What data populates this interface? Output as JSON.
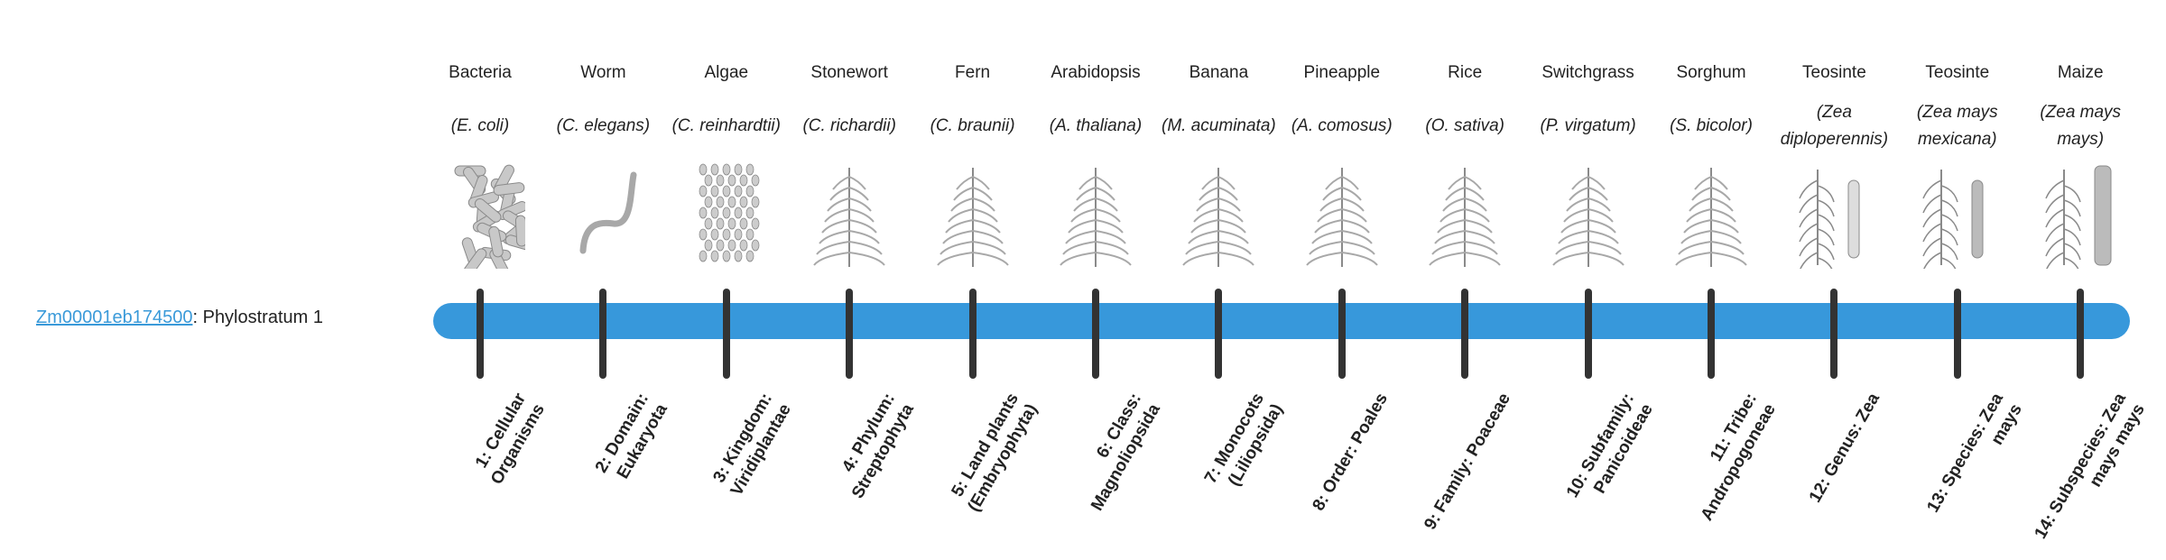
{
  "gene": {
    "id": "Zm00001eb174500",
    "suffix": ": Phylostratum 1"
  },
  "colors": {
    "bar": "#3798db",
    "tick": "#333333",
    "link": "#3a9ad9"
  },
  "columns": [
    {
      "common": "Bacteria",
      "scientific": "(E. coli)",
      "icon": "bacteria-icon",
      "stratum": "1: Cellular Organisms"
    },
    {
      "common": "Worm",
      "scientific": "(C. elegans)",
      "icon": "worm-icon",
      "stratum": "2: Domain: Eukaryota"
    },
    {
      "common": "Algae",
      "scientific": "(C. reinhardtii)",
      "icon": "algae-icon",
      "stratum": "3: Kingdom: Viridiplantae"
    },
    {
      "common": "Stonewort",
      "scientific": "(C. richardii)",
      "icon": "stonewort-icon",
      "stratum": "4: Phylum: Streptophyta"
    },
    {
      "common": "Fern",
      "scientific": "(C. braunii)",
      "icon": "fern-icon",
      "stratum": "5: Land plants (Embryophyta)"
    },
    {
      "common": "Arabidopsis",
      "scientific": "(A. thaliana)",
      "icon": "arabidopsis-icon",
      "stratum": "6: Class: Magnoliopsida"
    },
    {
      "common": "Banana",
      "scientific": "(M. acuminata)",
      "icon": "banana-icon",
      "stratum": "7: Monocots (Liliopsida)"
    },
    {
      "common": "Pineapple",
      "scientific": "(A. comosus)",
      "icon": "pineapple-icon",
      "stratum": "8: Order: Poales"
    },
    {
      "common": "Rice",
      "scientific": "(O. sativa)",
      "icon": "rice-icon",
      "stratum": "9: Family: Poaceae"
    },
    {
      "common": "Switchgrass",
      "scientific": "(P. virgatum)",
      "icon": "switchgrass-icon",
      "stratum": "10: Subfamily: Panicoideae"
    },
    {
      "common": "Sorghum",
      "scientific": "(S. bicolor)",
      "icon": "sorghum-icon",
      "stratum": "11: Tribe: Andropogoneae"
    },
    {
      "common": "Teosinte",
      "scientific": "(Zea diploperennis)",
      "icon": "teosinte-icon",
      "stratum": "12: Genus: Zea"
    },
    {
      "common": "Teosinte",
      "scientific": "(Zea mays mexicana)",
      "icon": "teosinte-mexicana-icon",
      "stratum": "13: Species: Zea mays"
    },
    {
      "common": "Maize",
      "scientific": "(Zea mays mays)",
      "icon": "maize-icon",
      "stratum": "14: Subspecies: Zea mays mays"
    }
  ]
}
